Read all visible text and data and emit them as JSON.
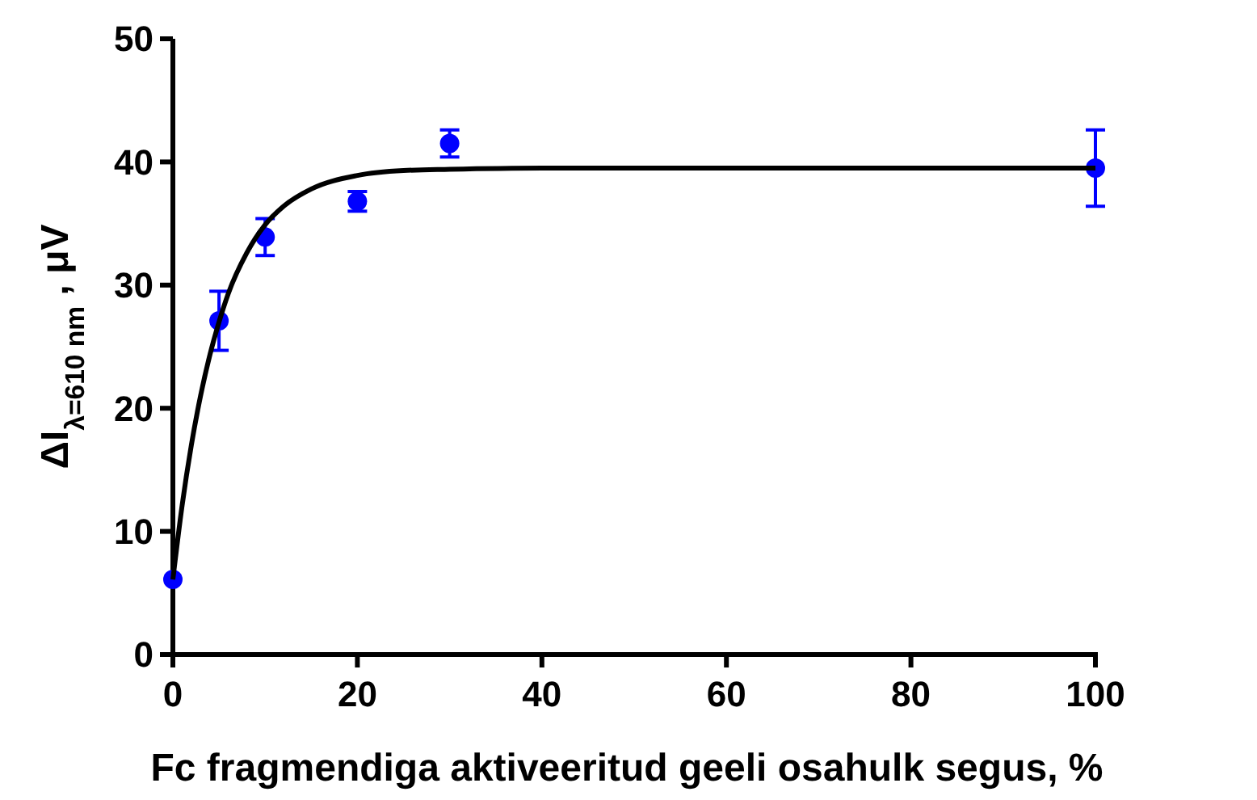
{
  "chart_data": {
    "type": "scatter",
    "xlabel": "Fc fragmendiga aktiveeritud geeli osahulk segus, %",
    "ylabel": "ΔI$_{λ=610 nm}$ , μV",
    "xlim": [
      0,
      100
    ],
    "xticks": [
      0,
      20,
      40,
      60,
      80,
      100
    ],
    "ylim": [
      0,
      50
    ],
    "yticks": [
      0,
      10,
      20,
      30,
      40,
      50
    ],
    "grid": false,
    "series": [
      {
        "color": "#0000ff",
        "marker": "circle",
        "x": [
          0,
          5,
          10,
          20,
          30,
          100
        ],
        "values": [
          6.1,
          27.1,
          33.9,
          36.8,
          41.5,
          39.5
        ],
        "errors": [
          null,
          2.4,
          1.5,
          0.8,
          1.1,
          3.1
        ]
      },
      {
        "type": "line",
        "color": "#000000",
        "line_style": "solid",
        "x": [
          0,
          1,
          2,
          3,
          4,
          5,
          6,
          8,
          10,
          12,
          15,
          20,
          25,
          30,
          40,
          50,
          100
        ],
        "values": [
          6.1,
          12.1,
          17.0,
          21.0,
          24.3,
          27.0,
          29.3,
          32.6,
          34.9,
          36.4,
          37.8,
          38.9,
          39.3,
          39.4,
          39.5,
          39.5,
          39.5
        ]
      }
    ]
  }
}
